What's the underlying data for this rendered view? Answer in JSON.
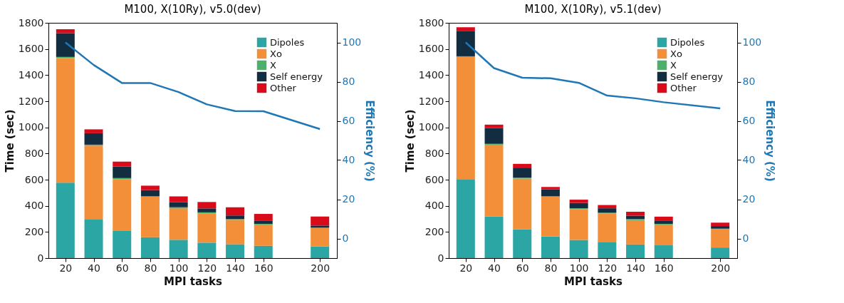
{
  "chart_data": [
    {
      "type": "bar",
      "title": "M100, X(10Ry), v5.0(dev)",
      "xlabel": "MPI tasks",
      "ylabel": "Time (sec)",
      "y2label": "Efficiency (%)",
      "stacked": true,
      "legend": "top right",
      "grid": false,
      "x": [
        20,
        40,
        60,
        80,
        100,
        120,
        140,
        160,
        200
      ],
      "xlim": [
        8,
        212
      ],
      "xticks": [
        20,
        40,
        60,
        80,
        100,
        120,
        140,
        160,
        200
      ],
      "ylim": [
        0,
        1800
      ],
      "yticks": [
        0,
        200,
        400,
        600,
        800,
        1000,
        1200,
        1400,
        1600,
        1800
      ],
      "y2lim": [
        -10,
        110
      ],
      "y2ticks": [
        0,
        20,
        40,
        60,
        80,
        100
      ],
      "series": [
        {
          "name": "Dipoles",
          "color": "#2ca6a4",
          "values": [
            577,
            299,
            207,
            160,
            140,
            118,
            106,
            94,
            89
          ]
        },
        {
          "name": "Xo",
          "color": "#f28f38",
          "values": [
            955,
            562,
            397,
            309,
            240,
            223,
            187,
            163,
            140
          ]
        },
        {
          "name": "X",
          "color": "#4caf6a",
          "values": [
            7,
            7,
            8,
            5,
            9,
            9,
            6,
            5,
            5
          ]
        },
        {
          "name": "Self energy",
          "color": "#132d40",
          "values": [
            182,
            87,
            88,
            46,
            38,
            30,
            27,
            22,
            15
          ]
        },
        {
          "name": "Other",
          "color": "#d90a1a",
          "values": [
            30,
            30,
            38,
            34,
            45,
            49,
            63,
            54,
            69
          ]
        },
        {
          "type": "line",
          "axis": "y2",
          "color": "#1f77b4",
          "line_style": "solid",
          "marker": "none",
          "values": [
            100,
            88.5,
            79.3,
            79.3,
            74.7,
            68.4,
            65.0,
            64.9,
            55.8
          ]
        }
      ]
    },
    {
      "type": "bar",
      "title": "M100, X(10Ry), v5.1(dev)",
      "xlabel": "MPI tasks",
      "ylabel": "Time (sec)",
      "y2label": "Efficiency (%)",
      "stacked": true,
      "legend": "top right",
      "grid": false,
      "x": [
        20,
        40,
        60,
        80,
        100,
        120,
        140,
        160,
        200
      ],
      "xlim": [
        8,
        212
      ],
      "xticks": [
        20,
        40,
        60,
        80,
        100,
        120,
        140,
        160,
        200
      ],
      "ylim": [
        0,
        1800
      ],
      "yticks": [
        0,
        200,
        400,
        600,
        800,
        1000,
        1200,
        1400,
        1600,
        1800
      ],
      "y2lim": [
        -10,
        110
      ],
      "y2ticks": [
        0,
        20,
        40,
        60,
        80,
        100
      ],
      "series": [
        {
          "name": "Dipoles",
          "color": "#2ca6a4",
          "values": [
            604,
            318,
            220,
            166,
            139,
            124,
            105,
            98,
            81
          ]
        },
        {
          "name": "Xo",
          "color": "#f28f38",
          "values": [
            935,
            550,
            388,
            303,
            235,
            218,
            186,
            159,
            139
          ]
        },
        {
          "name": "X",
          "color": "#4caf6a",
          "values": [
            5,
            6,
            8,
            5,
            7,
            5,
            7,
            5,
            5
          ]
        },
        {
          "name": "Self energy",
          "color": "#132d40",
          "values": [
            191,
            120,
            76,
            51,
            41,
            34,
            27,
            26,
            20
          ]
        },
        {
          "name": "Other",
          "color": "#d90a1a",
          "values": [
            31,
            27,
            29,
            19,
            25,
            25,
            29,
            29,
            26
          ]
        },
        {
          "type": "line",
          "axis": "y2",
          "color": "#1f77b4",
          "line_style": "solid",
          "marker": "none",
          "values": [
            100,
            86.9,
            82.0,
            81.7,
            79.4,
            72.9,
            71.5,
            69.5,
            66.4
          ]
        }
      ]
    }
  ]
}
